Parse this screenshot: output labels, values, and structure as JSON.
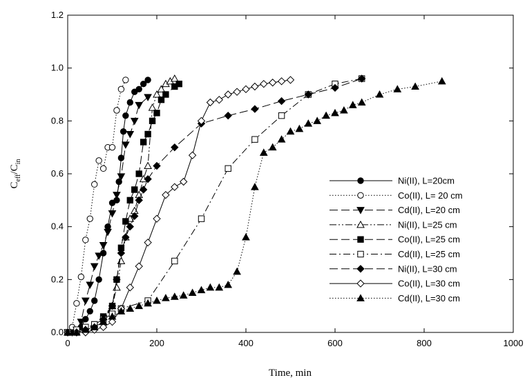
{
  "chart_data": {
    "type": "line",
    "xlabel": "Time, min",
    "ylabel_main": "C",
    "ylabel_sub1": "eff",
    "ylabel_mid": "/C",
    "ylabel_sub2": "in",
    "xlim": [
      0,
      1000
    ],
    "ylim": [
      0,
      1.2
    ],
    "xticks": [
      0,
      200,
      400,
      600,
      800,
      1000
    ],
    "yticks": [
      0.0,
      0.2,
      0.4,
      0.6,
      0.8,
      1.0,
      1.2
    ],
    "xtick_labels": [
      "0",
      "200",
      "400",
      "600",
      "800",
      "1000"
    ],
    "ytick_labels": [
      "0.0",
      "0.2",
      "0.4",
      "0.6",
      "0.8",
      "1.0",
      "1.2"
    ],
    "grid": false,
    "legend_position": "right",
    "series": [
      {
        "name": "Ni(II), L=20cm",
        "marker": "circle",
        "filled": true,
        "dash": "solid",
        "points": [
          [
            0,
            0
          ],
          [
            10,
            0
          ],
          [
            20,
            0.01
          ],
          [
            30,
            0.02
          ],
          [
            40,
            0.05
          ],
          [
            50,
            0.08
          ],
          [
            60,
            0.12
          ],
          [
            70,
            0.2
          ],
          [
            80,
            0.3
          ],
          [
            90,
            0.4
          ],
          [
            100,
            0.49
          ],
          [
            110,
            0.5
          ],
          [
            115,
            0.57
          ],
          [
            120,
            0.66
          ],
          [
            125,
            0.76
          ],
          [
            130,
            0.82
          ],
          [
            140,
            0.87
          ],
          [
            150,
            0.91
          ],
          [
            160,
            0.92
          ],
          [
            170,
            0.94
          ],
          [
            180,
            0.955
          ]
        ]
      },
      {
        "name": "Co(II), L= 20 cm",
        "marker": "circle",
        "filled": false,
        "dash": "dotted",
        "points": [
          [
            0,
            0
          ],
          [
            10,
            0.02
          ],
          [
            20,
            0.11
          ],
          [
            30,
            0.21
          ],
          [
            40,
            0.35
          ],
          [
            50,
            0.43
          ],
          [
            60,
            0.56
          ],
          [
            70,
            0.65
          ],
          [
            80,
            0.62
          ],
          [
            90,
            0.7
          ],
          [
            100,
            0.7
          ],
          [
            110,
            0.84
          ],
          [
            120,
            0.92
          ],
          [
            130,
            0.955
          ]
        ]
      },
      {
        "name": "Cd(II), L=20 cm",
        "marker": "triangle-down",
        "filled": true,
        "dash": "longdash",
        "points": [
          [
            0,
            0
          ],
          [
            10,
            0
          ],
          [
            20,
            0.01
          ],
          [
            30,
            0.04
          ],
          [
            40,
            0.12
          ],
          [
            50,
            0.18
          ],
          [
            60,
            0.25
          ],
          [
            70,
            0.29
          ],
          [
            80,
            0.33
          ],
          [
            90,
            0.38
          ],
          [
            100,
            0.45
          ],
          [
            110,
            0.52
          ],
          [
            120,
            0.59
          ],
          [
            130,
            0.71
          ],
          [
            140,
            0.75
          ],
          [
            150,
            0.8
          ],
          [
            160,
            0.86
          ],
          [
            180,
            0.89
          ]
        ]
      },
      {
        "name": "Ni(II), L=25 cm",
        "marker": "triangle-up",
        "filled": false,
        "dash": "dashdotdot",
        "points": [
          [
            0,
            0
          ],
          [
            20,
            0
          ],
          [
            40,
            0.01
          ],
          [
            60,
            0.02
          ],
          [
            80,
            0.04
          ],
          [
            100,
            0.1
          ],
          [
            110,
            0.17
          ],
          [
            120,
            0.27
          ],
          [
            130,
            0.36
          ],
          [
            140,
            0.43
          ],
          [
            150,
            0.46
          ],
          [
            160,
            0.52
          ],
          [
            170,
            0.58
          ],
          [
            180,
            0.63
          ],
          [
            190,
            0.85
          ],
          [
            200,
            0.9
          ],
          [
            210,
            0.92
          ],
          [
            220,
            0.94
          ],
          [
            230,
            0.95
          ],
          [
            240,
            0.96
          ]
        ]
      },
      {
        "name": "Co(II), L=25 cm",
        "marker": "square",
        "filled": true,
        "dash": "longdash",
        "points": [
          [
            0,
            0
          ],
          [
            20,
            0
          ],
          [
            40,
            0.01
          ],
          [
            60,
            0.03
          ],
          [
            80,
            0.06
          ],
          [
            100,
            0.1
          ],
          [
            110,
            0.2
          ],
          [
            120,
            0.32
          ],
          [
            130,
            0.42
          ],
          [
            140,
            0.5
          ],
          [
            150,
            0.54
          ],
          [
            160,
            0.6
          ],
          [
            170,
            0.72
          ],
          [
            180,
            0.75
          ],
          [
            190,
            0.8
          ],
          [
            200,
            0.83
          ],
          [
            210,
            0.88
          ],
          [
            220,
            0.9
          ],
          [
            240,
            0.93
          ],
          [
            250,
            0.94
          ]
        ]
      },
      {
        "name": "Cd(II), L=25 cm",
        "marker": "square",
        "filled": false,
        "dash": "dashdot",
        "points": [
          [
            0,
            0
          ],
          [
            20,
            0.01
          ],
          [
            40,
            0.02
          ],
          [
            60,
            0.03
          ],
          [
            80,
            0.05
          ],
          [
            100,
            0.07
          ],
          [
            120,
            0.09
          ],
          [
            180,
            0.12
          ],
          [
            240,
            0.27
          ],
          [
            300,
            0.43
          ],
          [
            360,
            0.62
          ],
          [
            420,
            0.73
          ],
          [
            480,
            0.82
          ],
          [
            540,
            0.9
          ],
          [
            600,
            0.94
          ],
          [
            660,
            0.96
          ]
        ]
      },
      {
        "name": "Ni(II), L=30 cm",
        "marker": "diamond",
        "filled": true,
        "dash": "longdash",
        "points": [
          [
            0,
            0
          ],
          [
            20,
            0
          ],
          [
            40,
            0.01
          ],
          [
            60,
            0.02
          ],
          [
            80,
            0.05
          ],
          [
            100,
            0.1
          ],
          [
            110,
            0.2
          ],
          [
            120,
            0.3
          ],
          [
            130,
            0.36
          ],
          [
            140,
            0.4
          ],
          [
            150,
            0.44
          ],
          [
            160,
            0.5
          ],
          [
            170,
            0.54
          ],
          [
            180,
            0.58
          ],
          [
            200,
            0.63
          ],
          [
            240,
            0.7
          ],
          [
            300,
            0.79
          ],
          [
            360,
            0.82
          ],
          [
            420,
            0.845
          ],
          [
            480,
            0.875
          ],
          [
            540,
            0.9
          ],
          [
            600,
            0.925
          ],
          [
            660,
            0.96
          ]
        ]
      },
      {
        "name": "Co(II), L=30 cm",
        "marker": "diamond",
        "filled": false,
        "dash": "solid",
        "points": [
          [
            0,
            0
          ],
          [
            20,
            0
          ],
          [
            40,
            0
          ],
          [
            60,
            0.01
          ],
          [
            80,
            0.02
          ],
          [
            100,
            0.04
          ],
          [
            120,
            0.09
          ],
          [
            140,
            0.17
          ],
          [
            160,
            0.25
          ],
          [
            180,
            0.34
          ],
          [
            200,
            0.43
          ],
          [
            220,
            0.52
          ],
          [
            240,
            0.55
          ],
          [
            260,
            0.57
          ],
          [
            280,
            0.67
          ],
          [
            300,
            0.8
          ],
          [
            320,
            0.87
          ],
          [
            340,
            0.88
          ],
          [
            360,
            0.9
          ],
          [
            380,
            0.91
          ],
          [
            400,
            0.92
          ],
          [
            420,
            0.93
          ],
          [
            440,
            0.94
          ],
          [
            460,
            0.945
          ],
          [
            480,
            0.95
          ],
          [
            500,
            0.955
          ]
        ]
      },
      {
        "name": "Cd(II), L=30 cm",
        "marker": "triangle-up",
        "filled": true,
        "dash": "dotted",
        "points": [
          [
            0,
            0
          ],
          [
            20,
            0
          ],
          [
            40,
            0.01
          ],
          [
            60,
            0.02
          ],
          [
            80,
            0.04
          ],
          [
            100,
            0.06
          ],
          [
            120,
            0.08
          ],
          [
            140,
            0.09
          ],
          [
            160,
            0.1
          ],
          [
            180,
            0.11
          ],
          [
            200,
            0.12
          ],
          [
            220,
            0.13
          ],
          [
            240,
            0.135
          ],
          [
            260,
            0.14
          ],
          [
            280,
            0.15
          ],
          [
            300,
            0.16
          ],
          [
            320,
            0.17
          ],
          [
            340,
            0.17
          ],
          [
            360,
            0.18
          ],
          [
            380,
            0.23
          ],
          [
            400,
            0.36
          ],
          [
            420,
            0.55
          ],
          [
            440,
            0.68
          ],
          [
            460,
            0.7
          ],
          [
            480,
            0.73
          ],
          [
            500,
            0.76
          ],
          [
            520,
            0.77
          ],
          [
            540,
            0.79
          ],
          [
            560,
            0.8
          ],
          [
            580,
            0.82
          ],
          [
            600,
            0.83
          ],
          [
            620,
            0.84
          ],
          [
            640,
            0.86
          ],
          [
            660,
            0.87
          ],
          [
            700,
            0.9
          ],
          [
            740,
            0.92
          ],
          [
            780,
            0.93
          ],
          [
            840,
            0.95
          ]
        ]
      }
    ]
  }
}
